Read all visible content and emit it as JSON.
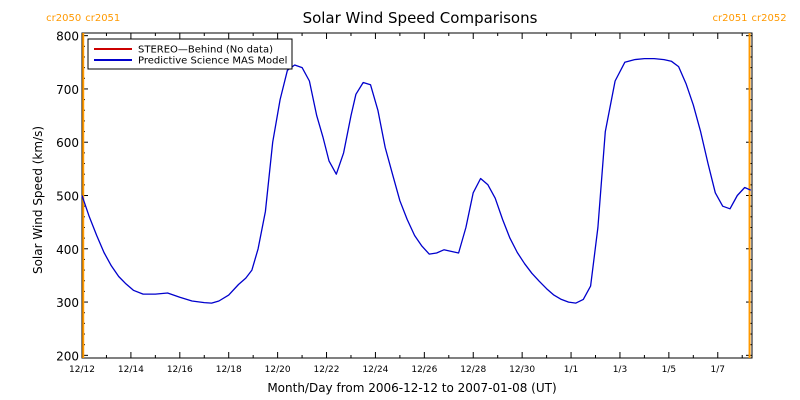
{
  "chart_data": {
    "type": "line",
    "title": "Solar Wind Speed Comparisons",
    "xlabel": "Month/Day from 2006-12-12 to 2007-01-08 (UT)",
    "ylabel": "Solar Wind Speed (km/s)",
    "xlim": [
      0,
      27.4
    ],
    "ylim": [
      195,
      805
    ],
    "yticks": [
      200,
      300,
      400,
      500,
      600,
      700,
      800
    ],
    "xticks": [
      {
        "x": 0,
        "label": "12/12"
      },
      {
        "x": 2,
        "label": "12/14"
      },
      {
        "x": 4,
        "label": "12/16"
      },
      {
        "x": 6,
        "label": "12/18"
      },
      {
        "x": 8,
        "label": "12/20"
      },
      {
        "x": 10,
        "label": "12/22"
      },
      {
        "x": 12,
        "label": "12/24"
      },
      {
        "x": 14,
        "label": "12/26"
      },
      {
        "x": 16,
        "label": "12/28"
      },
      {
        "x": 18,
        "label": "12/30"
      },
      {
        "x": 20,
        "label": "1/1"
      },
      {
        "x": 22,
        "label": "1/3"
      },
      {
        "x": 24,
        "label": "1/5"
      },
      {
        "x": 26,
        "label": "1/7"
      }
    ],
    "carrington_markers": [
      {
        "x": 0.05,
        "left_label": "cr2050",
        "right_label": "cr2051"
      },
      {
        "x": 27.3,
        "left_label": "cr2051",
        "right_label": "cr2052"
      }
    ],
    "marker_color": "#ff9900",
    "legend": [
      {
        "name": "STEREO—Behind (No data)",
        "color": "#cc0000"
      },
      {
        "name": "Predictive Science MAS Model",
        "color": "#0000cc"
      }
    ],
    "series": [
      {
        "name": "Predictive Science MAS Model",
        "color": "#0000cc",
        "x": [
          0,
          0.3,
          0.6,
          0.9,
          1.2,
          1.5,
          1.8,
          2.1,
          2.5,
          3.0,
          3.5,
          4.0,
          4.5,
          5.0,
          5.3,
          5.6,
          6.0,
          6.4,
          6.7,
          6.95,
          7.2,
          7.5,
          7.8,
          8.1,
          8.4,
          8.7,
          9.0,
          9.3,
          9.6,
          9.85,
          10.1,
          10.4,
          10.7,
          11.0,
          11.2,
          11.5,
          11.8,
          12.1,
          12.4,
          12.7,
          13.0,
          13.3,
          13.6,
          13.9,
          14.2,
          14.5,
          14.8,
          15.1,
          15.4,
          15.7,
          16.0,
          16.3,
          16.6,
          16.9,
          17.2,
          17.5,
          17.8,
          18.1,
          18.4,
          18.7,
          19.0,
          19.3,
          19.6,
          19.9,
          20.2,
          20.5,
          20.8,
          21.1,
          21.4,
          21.8,
          22.2,
          22.6,
          23.0,
          23.4,
          23.8,
          24.1,
          24.4,
          24.7,
          25.0,
          25.3,
          25.6,
          25.9,
          26.2,
          26.5,
          26.8,
          27.1,
          27.35
        ],
        "values": [
          500,
          460,
          425,
          393,
          368,
          348,
          334,
          322,
          315,
          315,
          317,
          309,
          302,
          299,
          298,
          302,
          313,
          333,
          345,
          360,
          400,
          470,
          600,
          680,
          735,
          745,
          740,
          715,
          650,
          610,
          565,
          540,
          580,
          650,
          690,
          712,
          708,
          660,
          590,
          540,
          490,
          455,
          425,
          405,
          390,
          392,
          398,
          395,
          392,
          440,
          505,
          532,
          520,
          495,
          455,
          420,
          393,
          372,
          354,
          339,
          325,
          313,
          305,
          300,
          298,
          305,
          330,
          440,
          620,
          715,
          750,
          755,
          757,
          757,
          755,
          752,
          742,
          710,
          670,
          620,
          560,
          505,
          480,
          475,
          500,
          515,
          510
        ]
      }
    ]
  }
}
